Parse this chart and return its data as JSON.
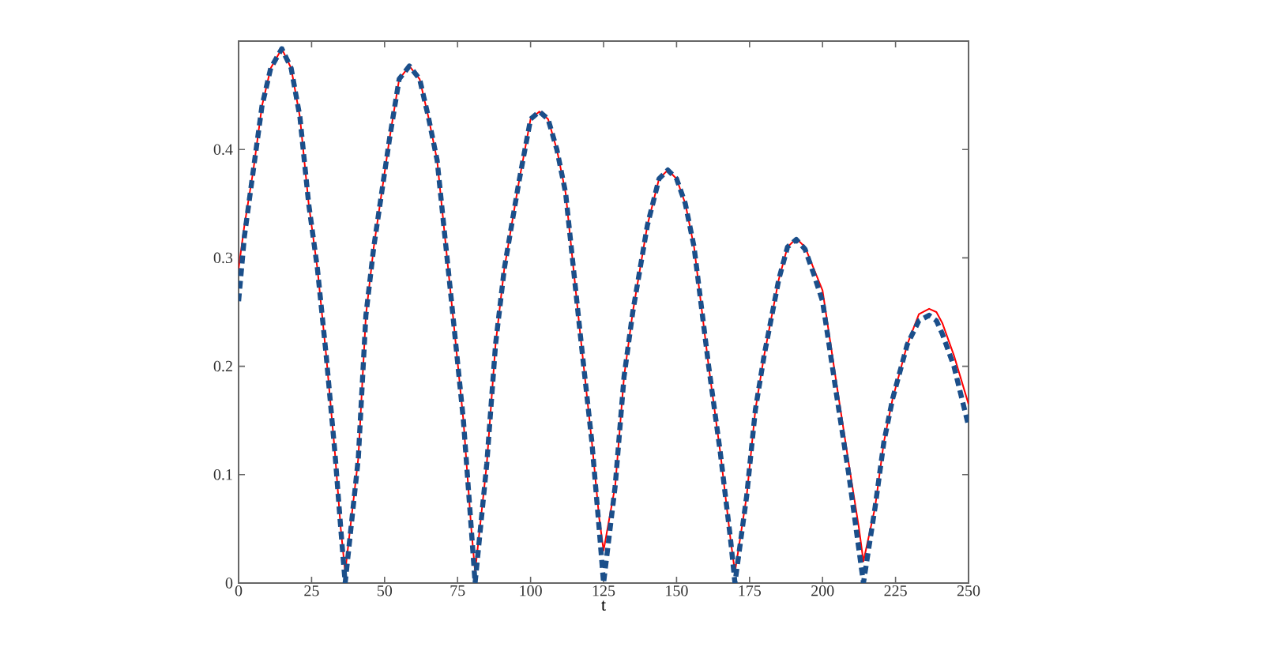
{
  "chart_data": {
    "type": "line",
    "xlabel": "t",
    "xlim": [
      0,
      250
    ],
    "ylim": [
      0,
      0.5
    ],
    "xticks": [
      0,
      25,
      50,
      75,
      100,
      125,
      150,
      175,
      200,
      225,
      250
    ],
    "yticks": [
      0,
      0.1,
      0.2,
      0.3,
      0.4
    ],
    "marker": "none",
    "series": [
      {
        "color": "#ff0000",
        "line_style": "solid",
        "x": [
          0,
          2,
          5,
          8,
          11,
          14.8,
          18,
          21,
          24,
          27,
          30,
          33,
          35,
          36.5,
          41,
          43.6,
          46.3,
          51.7,
          55,
          58.5,
          62,
          65,
          68,
          73.4,
          77,
          79.7,
          81,
          85,
          88,
          91,
          96,
          100,
          103,
          106,
          109,
          112,
          117,
          121,
          123.5,
          125,
          129,
          132,
          135,
          140,
          144,
          147,
          150,
          153,
          156,
          161,
          165,
          168.5,
          170,
          174,
          177,
          180,
          185,
          188,
          191,
          194,
          197,
          200,
          205,
          209,
          212.5,
          214,
          218,
          221,
          224,
          229,
          233,
          236.5,
          239,
          241,
          245,
          250
        ],
        "values": [
          0.29,
          0.33,
          0.38,
          0.44,
          0.475,
          0.493,
          0.475,
          0.43,
          0.35,
          0.29,
          0.21,
          0.12,
          0.05,
          0.01,
          0.115,
          0.247,
          0.31,
          0.41,
          0.465,
          0.477,
          0.465,
          0.43,
          0.39,
          0.247,
          0.15,
          0.05,
          0.01,
          0.11,
          0.22,
          0.29,
          0.37,
          0.428,
          0.435,
          0.428,
          0.4,
          0.36,
          0.23,
          0.13,
          0.06,
          0.03,
          0.09,
          0.19,
          0.25,
          0.33,
          0.373,
          0.381,
          0.373,
          0.35,
          0.31,
          0.2,
          0.12,
          0.04,
          0.01,
          0.08,
          0.16,
          0.21,
          0.28,
          0.31,
          0.318,
          0.31,
          0.29,
          0.27,
          0.18,
          0.11,
          0.05,
          0.02,
          0.07,
          0.13,
          0.17,
          0.22,
          0.248,
          0.253,
          0.25,
          0.24,
          0.21,
          0.165
        ]
      },
      {
        "color": "#1b4f8a",
        "line_style": "dashed",
        "x": [
          0,
          2,
          5,
          8,
          11,
          14.8,
          18,
          21,
          24,
          27,
          30,
          33,
          35,
          36.5,
          41,
          43.6,
          46.3,
          51.7,
          55,
          58.5,
          62,
          65,
          68,
          73.4,
          77,
          79.7,
          81,
          85,
          88,
          91,
          96,
          100,
          103,
          106,
          109,
          112,
          117,
          121,
          123.5,
          125,
          129,
          132,
          135,
          140,
          144,
          147,
          150,
          153,
          156,
          161,
          165,
          168.5,
          170,
          174,
          177,
          180,
          185,
          188,
          191,
          194,
          197,
          200,
          205,
          209,
          212.5,
          214,
          218,
          221,
          224,
          229,
          233,
          236.5,
          239,
          241,
          245,
          250
        ],
        "values": [
          0.26,
          0.32,
          0.38,
          0.44,
          0.475,
          0.493,
          0.475,
          0.43,
          0.35,
          0.29,
          0.21,
          0.12,
          0.05,
          0,
          0.115,
          0.247,
          0.31,
          0.41,
          0.465,
          0.477,
          0.465,
          0.43,
          0.39,
          0.247,
          0.15,
          0.05,
          0,
          0.11,
          0.22,
          0.29,
          0.37,
          0.428,
          0.435,
          0.428,
          0.4,
          0.36,
          0.23,
          0.13,
          0.05,
          0,
          0.09,
          0.19,
          0.25,
          0.33,
          0.373,
          0.381,
          0.373,
          0.35,
          0.31,
          0.2,
          0.12,
          0.04,
          0,
          0.08,
          0.16,
          0.21,
          0.28,
          0.31,
          0.317,
          0.308,
          0.285,
          0.26,
          0.17,
          0.1,
          0.03,
          0,
          0.07,
          0.13,
          0.17,
          0.22,
          0.242,
          0.247,
          0.242,
          0.23,
          0.2,
          0.145
        ]
      }
    ]
  }
}
